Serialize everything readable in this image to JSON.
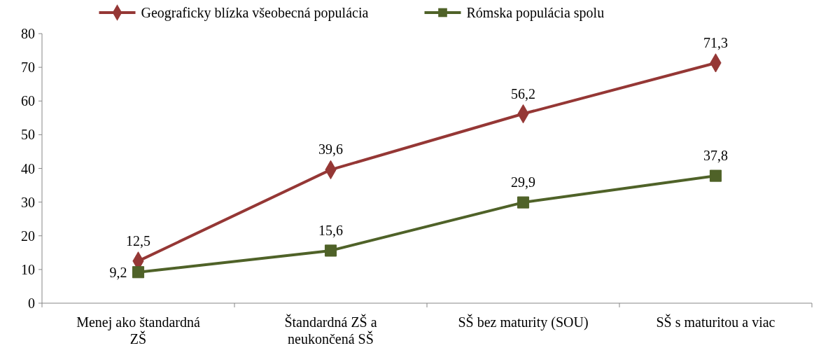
{
  "chart_data": {
    "type": "line",
    "categories": [
      "Menej ako štandardná ZŠ",
      "Štandardná ZŠ a neukončená SŠ",
      "SŠ bez maturity (SOU)",
      "SŠ s maturitou a viac"
    ],
    "series": [
      {
        "name": "Geograficky blízka všeobecná populácia",
        "color": "#953735",
        "marker": "diamond",
        "values": [
          12.5,
          39.6,
          56.2,
          71.3
        ],
        "value_labels": [
          "12,5",
          "39,6",
          "56,2",
          "71,3"
        ]
      },
      {
        "name": "Rómska populácia spolu",
        "color": "#4f6228",
        "marker": "square",
        "values": [
          9.2,
          15.6,
          29.9,
          37.8
        ],
        "value_labels": [
          "9,2",
          "15,6",
          "29,9",
          "37,8"
        ]
      }
    ],
    "ylim": [
      0,
      80
    ],
    "yticks": [
      0,
      10,
      20,
      30,
      40,
      50,
      60,
      70,
      80
    ],
    "grid": false,
    "legend": "top",
    "line_style": "solid"
  }
}
